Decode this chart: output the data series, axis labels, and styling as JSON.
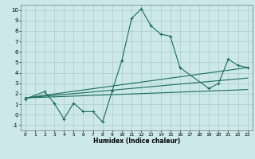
{
  "title": "",
  "xlabel": "Humidex (Indice chaleur)",
  "bg_color": "#cce8e8",
  "grid_color": "#b0d0d0",
  "line_color": "#1a6b5a",
  "xlim": [
    -0.5,
    23.5
  ],
  "ylim": [
    -1.5,
    10.5
  ],
  "xticks": [
    0,
    1,
    2,
    3,
    4,
    5,
    6,
    7,
    8,
    9,
    10,
    11,
    12,
    13,
    14,
    15,
    16,
    17,
    18,
    19,
    20,
    21,
    22,
    23
  ],
  "yticks": [
    -1,
    0,
    1,
    2,
    3,
    4,
    5,
    6,
    7,
    8,
    9,
    10
  ],
  "main_x": [
    0,
    2,
    3,
    4,
    5,
    6,
    7,
    8,
    9,
    10,
    11,
    12,
    13,
    14,
    15,
    16,
    19,
    20,
    21,
    22,
    23
  ],
  "main_y": [
    1.5,
    2.2,
    1.1,
    -0.4,
    1.1,
    0.3,
    0.3,
    -0.7,
    2.3,
    5.2,
    9.2,
    10.1,
    8.5,
    7.7,
    7.5,
    4.5,
    2.5,
    3.0,
    5.3,
    4.7,
    4.5
  ],
  "trend1_x": [
    0,
    23
  ],
  "trend1_y": [
    1.6,
    4.5
  ],
  "trend2_x": [
    0,
    23
  ],
  "trend2_y": [
    1.6,
    2.4
  ],
  "trend3_x": [
    0,
    23
  ],
  "trend3_y": [
    1.6,
    3.5
  ]
}
